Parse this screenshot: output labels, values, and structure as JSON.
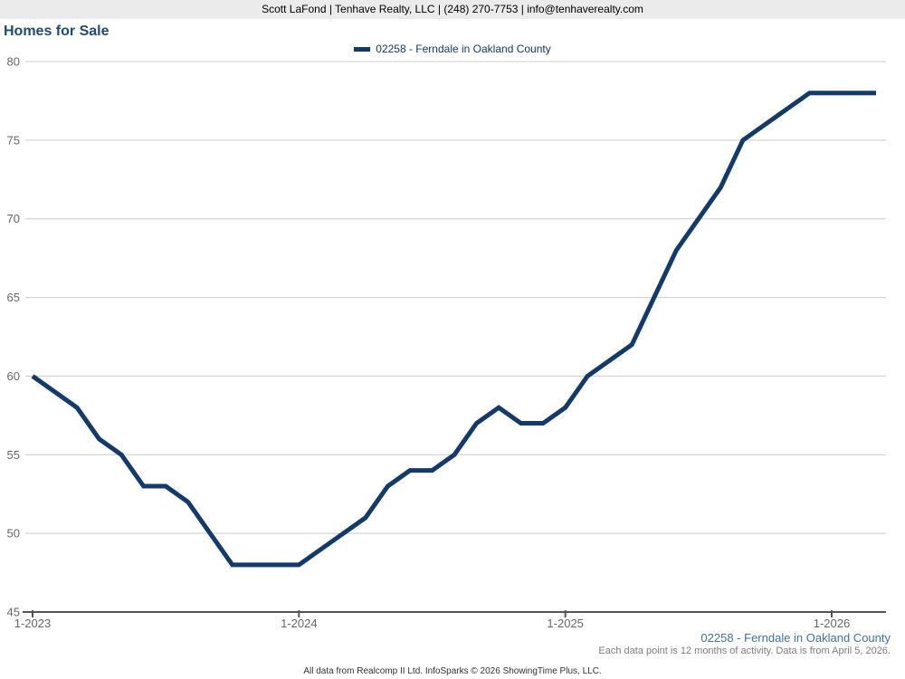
{
  "header": {
    "contact_line": "Scott LaFond | Tenhave Realty, LLC | (248) 270-7753 | info@tenhaverealty.com"
  },
  "title": "Homes for Sale",
  "legend": {
    "label": "02258 - Ferndale in Oakland County",
    "swatch_color": "#123a6b"
  },
  "chart_data": {
    "type": "line",
    "title": "Homes for Sale",
    "x": [
      "1-2023",
      "2-2023",
      "3-2023",
      "4-2023",
      "5-2023",
      "6-2023",
      "7-2023",
      "8-2023",
      "9-2023",
      "10-2023",
      "11-2023",
      "12-2023",
      "1-2024",
      "2-2024",
      "3-2024",
      "4-2024",
      "5-2024",
      "6-2024",
      "7-2024",
      "8-2024",
      "9-2024",
      "10-2024",
      "11-2024",
      "12-2024",
      "1-2025",
      "2-2025",
      "3-2025",
      "4-2025",
      "5-2025",
      "6-2025",
      "7-2025",
      "8-2025",
      "9-2025",
      "10-2025",
      "11-2025",
      "12-2025",
      "1-2026",
      "2-2026",
      "3-2026"
    ],
    "series": [
      {
        "name": "02258 - Ferndale in Oakland County",
        "color": "#123a6b",
        "values": [
          60,
          59,
          58,
          56,
          55,
          53,
          53,
          52,
          50,
          48,
          48,
          48,
          48,
          49,
          50,
          51,
          53,
          54,
          54,
          55,
          57,
          58,
          57,
          57,
          58,
          60,
          61,
          62,
          65,
          68,
          70,
          72,
          75,
          76,
          77,
          78,
          78,
          78,
          78
        ]
      }
    ],
    "x_tick_labels": [
      "1-2023",
      "1-2024",
      "1-2025",
      "1-2026"
    ],
    "x_tick_month_indices": [
      0,
      12,
      24,
      36
    ],
    "y_ticks": [
      45,
      50,
      55,
      60,
      65,
      70,
      75,
      80
    ],
    "ylim": [
      45,
      80
    ],
    "grid": true,
    "legend_position": "top-center",
    "colors": {
      "line": "#123a6b",
      "gridline": "#cccccc",
      "axis": "#555555",
      "tick_label": "#666666"
    },
    "layout": {
      "plot_left": 28,
      "plot_right": 979,
      "plot_top": 68,
      "axis_y": 676,
      "x_start": 36,
      "x_end": 919,
      "line_width": 5
    }
  },
  "footer": {
    "series_label": "02258 - Ferndale in Oakland County",
    "note": "Each data point is 12 months of activity. Data is from April 5, 2026.",
    "attribution": "All data from Realcomp II Ltd. InfoSparks © 2026 ShowingTime Plus, LLC."
  }
}
